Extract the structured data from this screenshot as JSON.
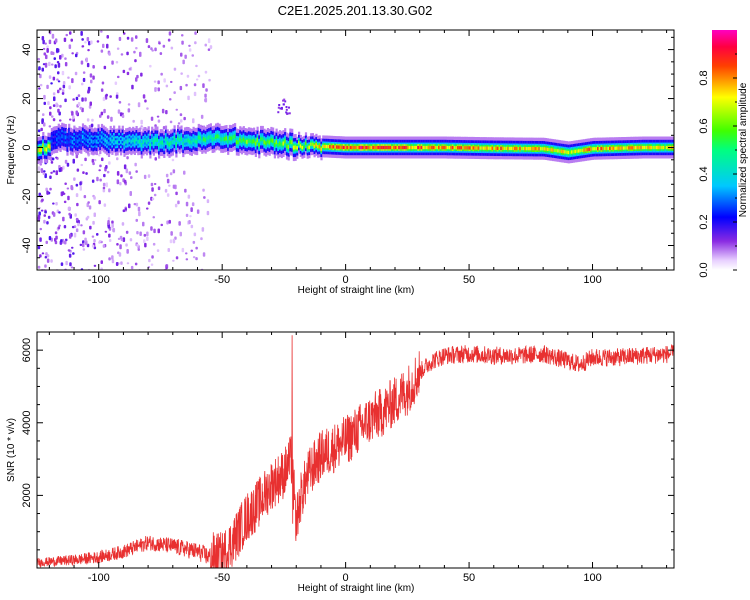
{
  "title": "C2E1.2025.201.13.30.G02",
  "chart_data": [
    {
      "type": "heatmap",
      "xlabel": "Height of straight line (km)",
      "ylabel": "Frequency (Hz)",
      "xlim": [
        -125,
        133
      ],
      "ylim": [
        -50,
        48
      ],
      "xticks": [
        -100,
        -50,
        0,
        50,
        100
      ],
      "yticks": [
        -40,
        -20,
        0,
        20,
        40
      ],
      "colorbar": {
        "label": "Normalized spectral amplitude",
        "range": [
          0,
          1
        ],
        "ticks": [
          "0.0",
          "0.2",
          "0.4",
          "0.6",
          "0.8"
        ],
        "colormap": "rainbow: white-violet (0) to blue, cyan, green, yellow, red, magenta (1)"
      },
      "ridge": [
        {
          "x": -120,
          "f": 3.5,
          "amp": 0.25
        },
        {
          "x": -100,
          "f": 3.0,
          "amp": 0.35
        },
        {
          "x": -80,
          "f": 2.0,
          "amp": 0.45
        },
        {
          "x": -60,
          "f": 3.0,
          "amp": 0.5
        },
        {
          "x": -50,
          "f": 4.0,
          "amp": 0.55
        },
        {
          "x": -40,
          "f": 2.5,
          "amp": 0.6
        },
        {
          "x": -30,
          "f": 2.0,
          "amp": 0.6
        },
        {
          "x": -20,
          "f": 1.0,
          "amp": 0.65
        },
        {
          "x": -10,
          "f": 0.5,
          "amp": 0.75
        },
        {
          "x": 0,
          "f": 0.0,
          "amp": 0.9
        },
        {
          "x": 20,
          "f": 0.0,
          "amp": 0.85
        },
        {
          "x": 40,
          "f": 0.0,
          "amp": 0.8
        },
        {
          "x": 60,
          "f": -0.3,
          "amp": 0.8
        },
        {
          "x": 80,
          "f": -0.5,
          "amp": 0.75
        },
        {
          "x": 90,
          "f": -2.0,
          "amp": 0.7
        },
        {
          "x": 100,
          "f": -0.5,
          "amp": 0.8
        },
        {
          "x": 120,
          "f": 0.0,
          "amp": 0.75
        },
        {
          "x": 133,
          "f": 0.0,
          "amp": 0.7
        }
      ]
    },
    {
      "type": "line",
      "xlabel": "Height of straight line (km)",
      "ylabel": "SNR (10 * v/v)",
      "xlim": [
        -125,
        133
      ],
      "ylim": [
        0,
        6500
      ],
      "xticks": [
        -100,
        -50,
        0,
        50,
        100
      ],
      "yticks": [
        2000,
        4000,
        6000
      ],
      "color": "#e83030",
      "series": [
        {
          "x": [
            -125,
            -110,
            -100,
            -90,
            -80,
            -70,
            -60,
            -55,
            -50,
            -45,
            -40,
            -35,
            -30,
            -25,
            -22,
            -20,
            -18,
            -15,
            -10,
            -5,
            0,
            5,
            10,
            15,
            20,
            25,
            30,
            35,
            40,
            50,
            60,
            70,
            80,
            85,
            90,
            95,
            100,
            110,
            120,
            133
          ],
          "y": [
            150,
            220,
            300,
            450,
            700,
            600,
            450,
            300,
            300,
            800,
            1400,
            1800,
            2300,
            2600,
            3000,
            1300,
            2000,
            2600,
            3100,
            3300,
            3500,
            3800,
            4100,
            4300,
            4600,
            4900,
            5400,
            5700,
            5850,
            5900,
            5850,
            5850,
            5900,
            5800,
            5700,
            5600,
            5800,
            5800,
            5850,
            5900
          ]
        }
      ]
    }
  ]
}
